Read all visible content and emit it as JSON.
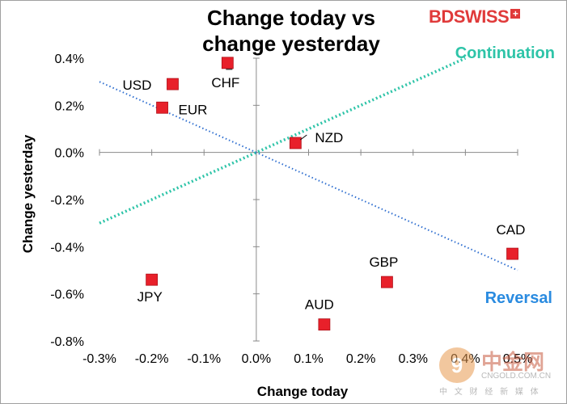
{
  "header": {
    "title_line1": "Change today vs",
    "title_line2": "change yesterday"
  },
  "brand": {
    "logo_text": "BDSWISS",
    "logo_plus": "+",
    "color": "#e03a3a"
  },
  "watermark": {
    "glyph": "9",
    "name": "中金网",
    "url": "CNGOLD.COM.CN",
    "subtitle": "中 文 财 经 新 媒 体"
  },
  "chart_data": {
    "type": "scatter",
    "xlabel": "Change today",
    "ylabel": "Change yesterday",
    "xlim": [
      -0.3,
      0.5
    ],
    "ylim": [
      -0.8,
      0.4
    ],
    "x_ticks": [
      -0.3,
      -0.2,
      -0.1,
      0.0,
      0.1,
      0.2,
      0.3,
      0.4,
      0.5
    ],
    "x_tick_labels": [
      "-0.3%",
      "-0.2%",
      "-0.1%",
      "0.0%",
      "0.1%",
      "0.2%",
      "0.3%",
      "0.4%",
      "0.5%"
    ],
    "y_ticks": [
      0.4,
      0.2,
      0.0,
      -0.2,
      -0.4,
      -0.6,
      -0.8
    ],
    "y_tick_labels": [
      "0.4%",
      "0.2%",
      "0.0%",
      "-0.2%",
      "-0.4%",
      "-0.6%",
      "-0.8%"
    ],
    "marker_color": "#e8202a",
    "points": [
      {
        "label": "USD",
        "x": -0.16,
        "y": 0.29
      },
      {
        "label": "CHF",
        "x": -0.055,
        "y": 0.38
      },
      {
        "label": "EUR",
        "x": -0.18,
        "y": 0.19
      },
      {
        "label": "NZD",
        "x": 0.075,
        "y": 0.04
      },
      {
        "label": "JPY",
        "x": -0.2,
        "y": -0.54
      },
      {
        "label": "CAD",
        "x": 0.49,
        "y": -0.43
      },
      {
        "label": "GBP",
        "x": 0.25,
        "y": -0.55
      },
      {
        "label": "AUD",
        "x": 0.13,
        "y": -0.73
      }
    ],
    "lines": [
      {
        "name": "Continuation",
        "x": [
          -0.3,
          0.4
        ],
        "y": [
          -0.3,
          0.4
        ],
        "color": "#2ec4a8"
      },
      {
        "name": "Reversal",
        "x": [
          -0.3,
          0.5
        ],
        "y": [
          0.3,
          -0.5
        ],
        "color": "#2f6fd0"
      }
    ],
    "annotations": [
      {
        "text": "Continuation",
        "color": "#2ec4a8"
      },
      {
        "text": "Reversal",
        "color": "#2a8be0"
      }
    ]
  }
}
